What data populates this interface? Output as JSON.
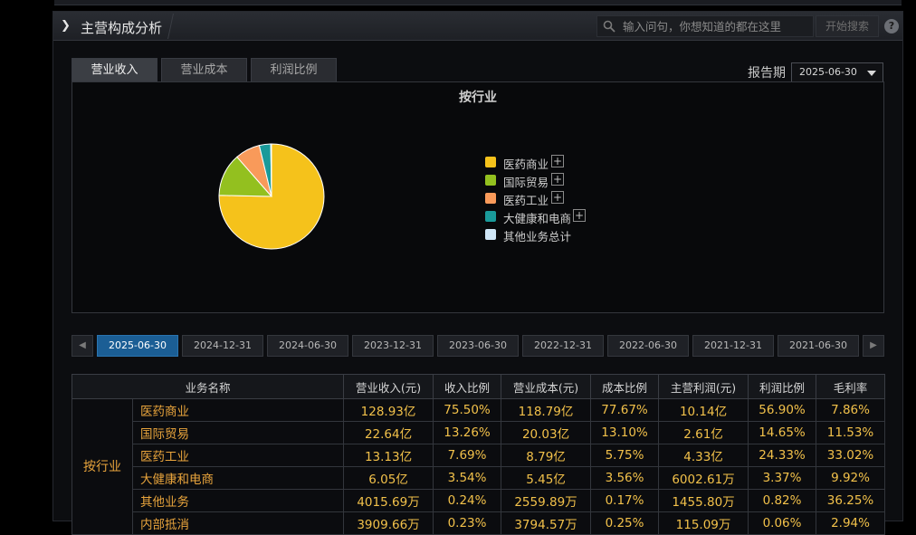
{
  "header": {
    "title": "主营构成分析",
    "search_placeholder": "输入问句，你想知道的都在这里",
    "search_button": "开始搜索",
    "help_label": "?"
  },
  "tabs": [
    {
      "label": "营业收入",
      "active": true
    },
    {
      "label": "营业成本",
      "active": false
    },
    {
      "label": "利润比例",
      "active": false
    }
  ],
  "report_period": {
    "label": "报告期",
    "value": "2025-06-30"
  },
  "chart_data": {
    "type": "pie",
    "title": "按行业",
    "categories": [
      "医药商业",
      "国际贸易",
      "医药工业",
      "大健康和电商",
      "其他业务总计"
    ],
    "values": [
      75.5,
      13.26,
      7.69,
      3.54,
      0.24
    ],
    "colors": [
      "#f5c21b",
      "#93c01f",
      "#f99a5a",
      "#1a9a9a",
      "#cfe6f7"
    ],
    "legend_expandable": [
      true,
      true,
      true,
      true,
      false
    ],
    "legend_position": "right"
  },
  "dates": [
    "2025-06-30",
    "2024-12-31",
    "2024-06-30",
    "2023-12-31",
    "2023-06-30",
    "2022-12-31",
    "2022-06-30",
    "2021-12-31",
    "2021-06-30"
  ],
  "active_date": "2025-06-30",
  "table": {
    "headers": [
      "业务名称",
      "营业收入(元)",
      "收入比例",
      "营业成本(元)",
      "成本比例",
      "主营利润(元)",
      "利润比例",
      "毛利率"
    ],
    "group": "按行业",
    "rows": [
      {
        "name": "医药商业",
        "revenue": "128.93亿",
        "revenue_ratio": "75.50%",
        "cost": "118.79亿",
        "cost_ratio": "77.67%",
        "profit": "10.14亿",
        "profit_ratio": "56.90%",
        "margin": "7.86%"
      },
      {
        "name": "国际贸易",
        "revenue": "22.64亿",
        "revenue_ratio": "13.26%",
        "cost": "20.03亿",
        "cost_ratio": "13.10%",
        "profit": "2.61亿",
        "profit_ratio": "14.65%",
        "margin": "11.53%"
      },
      {
        "name": "医药工业",
        "revenue": "13.13亿",
        "revenue_ratio": "7.69%",
        "cost": "8.79亿",
        "cost_ratio": "5.75%",
        "profit": "4.33亿",
        "profit_ratio": "24.33%",
        "margin": "33.02%"
      },
      {
        "name": "大健康和电商",
        "revenue": "6.05亿",
        "revenue_ratio": "3.54%",
        "cost": "5.45亿",
        "cost_ratio": "3.56%",
        "profit": "6002.61万",
        "profit_ratio": "3.37%",
        "margin": "9.92%"
      },
      {
        "name": "其他业务",
        "revenue": "4015.69万",
        "revenue_ratio": "0.24%",
        "cost": "2559.89万",
        "cost_ratio": "0.17%",
        "profit": "1455.80万",
        "profit_ratio": "0.82%",
        "margin": "36.25%"
      },
      {
        "name": "内部抵消",
        "revenue": "3909.66万",
        "revenue_ratio": "0.23%",
        "cost": "3794.57万",
        "cost_ratio": "0.25%",
        "profit": "115.09万",
        "profit_ratio": "0.06%",
        "margin": "2.94%"
      }
    ]
  }
}
